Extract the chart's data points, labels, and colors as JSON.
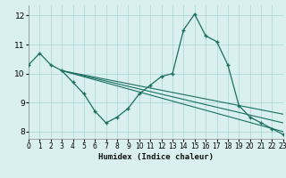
{
  "background_color": "#daf0f0",
  "grid_color": "#a8d4d4",
  "line_color": "#1a6e60",
  "xlabel": "Humidex (Indice chaleur)",
  "xlim": [
    0,
    23
  ],
  "ylim": [
    7.75,
    12.35
  ],
  "yticks": [
    8,
    9,
    10,
    11,
    12
  ],
  "xticks": [
    0,
    1,
    2,
    3,
    4,
    5,
    6,
    7,
    8,
    9,
    10,
    11,
    12,
    13,
    14,
    15,
    16,
    17,
    18,
    19,
    20,
    21,
    22,
    23
  ],
  "main_x": [
    0,
    1,
    2,
    3,
    4,
    5,
    6,
    7,
    8,
    9,
    10,
    11,
    12,
    13,
    14,
    15,
    16,
    17,
    18,
    19,
    20,
    21,
    22,
    23
  ],
  "main_y": [
    10.3,
    10.7,
    10.3,
    10.1,
    9.7,
    9.3,
    8.7,
    8.3,
    8.5,
    8.8,
    9.3,
    9.6,
    9.9,
    10.0,
    11.5,
    12.05,
    11.3,
    11.1,
    10.3,
    8.9,
    8.5,
    8.3,
    8.1,
    7.9
  ],
  "trend_lines": [
    {
      "x": [
        3,
        23
      ],
      "y": [
        10.1,
        8.0
      ]
    },
    {
      "x": [
        3,
        23
      ],
      "y": [
        10.1,
        8.3
      ]
    },
    {
      "x": [
        3,
        23
      ],
      "y": [
        10.1,
        8.6
      ]
    }
  ]
}
